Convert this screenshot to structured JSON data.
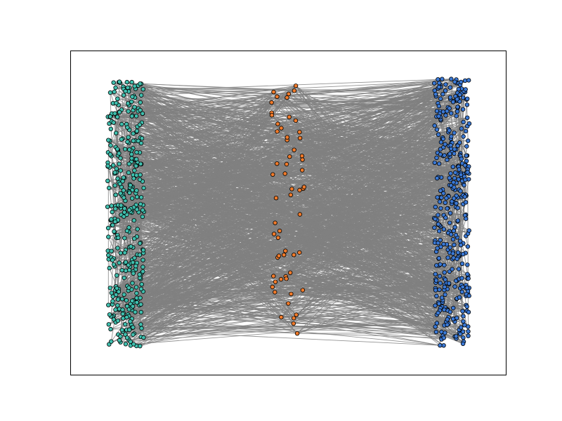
{
  "graph": {
    "type": "network",
    "groups": [
      {
        "color": "#3fbfae"
      },
      {
        "color": "#f07a2a"
      },
      {
        "color": "#3a78d4"
      }
    ],
    "edge_color": "#808080",
    "node_edge_color": "#000000"
  }
}
